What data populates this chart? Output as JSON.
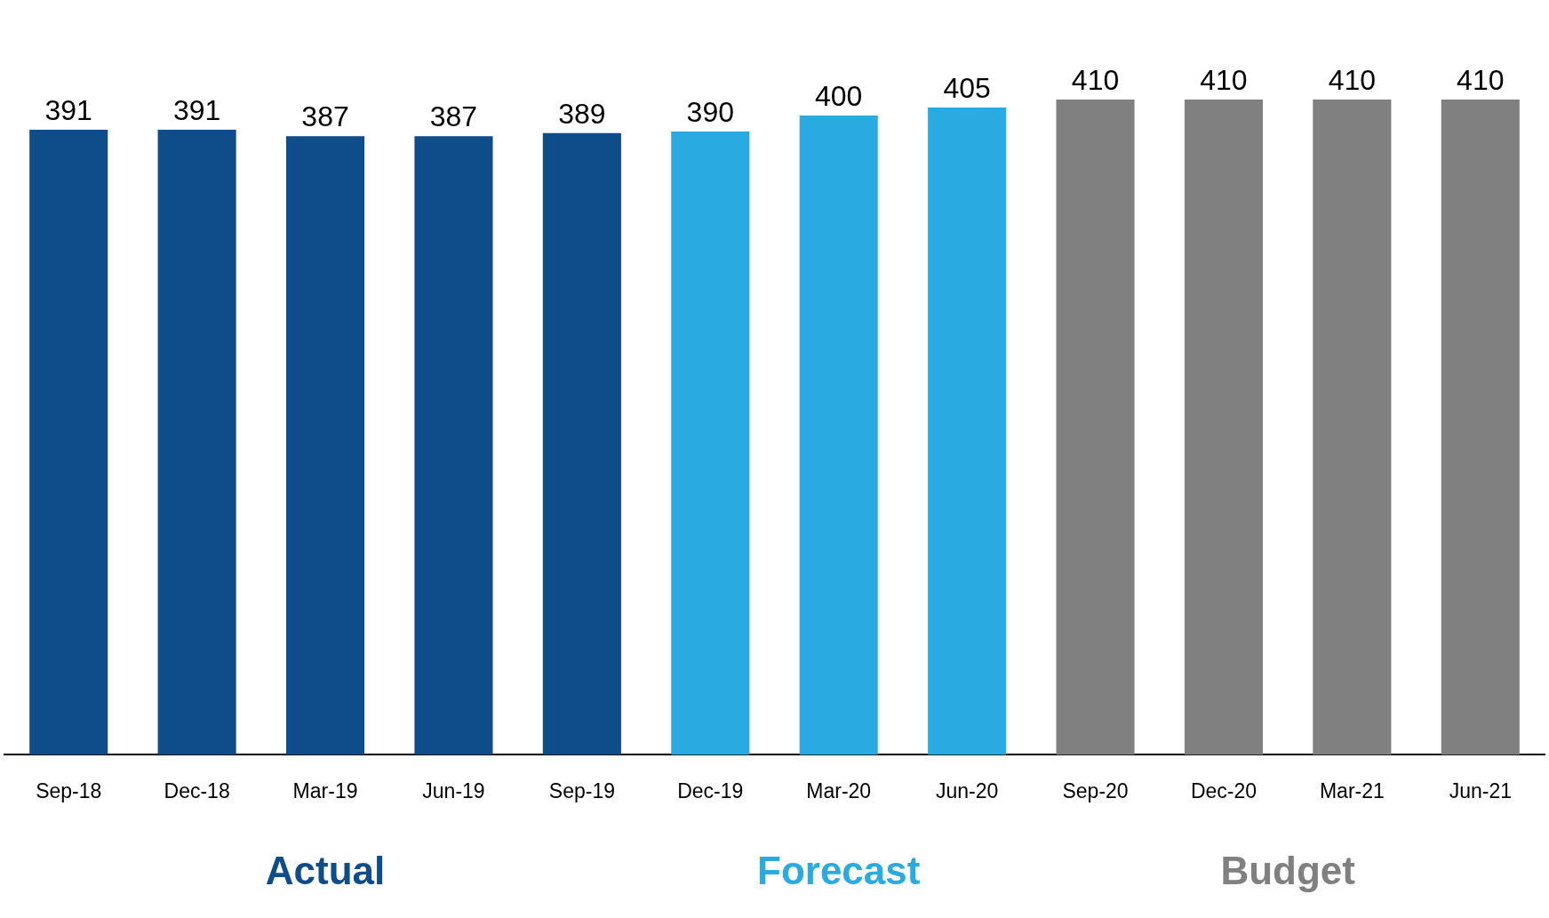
{
  "chart_data": {
    "type": "bar",
    "categories": [
      "Sep-18",
      "Dec-18",
      "Mar-19",
      "Jun-19",
      "Sep-19",
      "Dec-19",
      "Mar-20",
      "Jun-20",
      "Sep-20",
      "Dec-20",
      "Mar-21",
      "Jun-21"
    ],
    "series": [
      {
        "name": "Actual",
        "color": "#0f4c8a",
        "values": [
          391,
          391,
          387,
          387,
          389,
          null,
          null,
          null,
          null,
          null,
          null,
          null
        ]
      },
      {
        "name": "Forecast",
        "color": "#29abe2",
        "values": [
          null,
          null,
          null,
          null,
          null,
          390,
          400,
          405,
          null,
          null,
          null,
          null
        ]
      },
      {
        "name": "Budget",
        "color": "#808080",
        "values": [
          null,
          null,
          null,
          null,
          null,
          null,
          null,
          null,
          410,
          410,
          410,
          410
        ]
      }
    ],
    "stacked": true,
    "tick_labels": "x",
    "data_labels": true,
    "legend": "bottom",
    "grid": false
  }
}
